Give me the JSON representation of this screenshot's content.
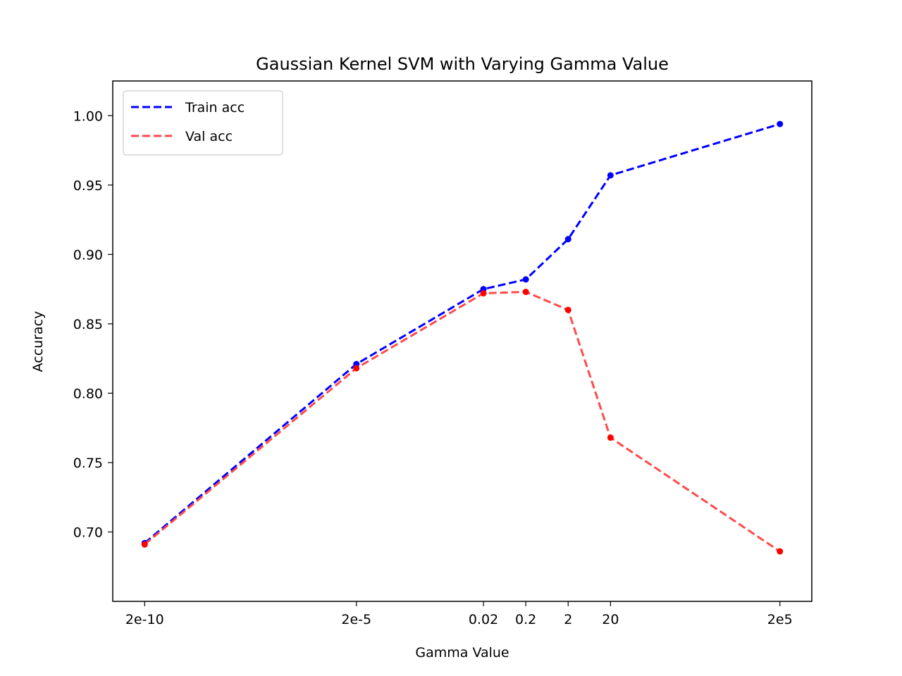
{
  "chart_data": {
    "type": "line",
    "title": "Gaussian Kernel SVM with Varying Gamma Value",
    "xlabel": "Gamma Value",
    "ylabel": "Accuracy",
    "x_scale": "log10",
    "x": [
      2e-10,
      2e-05,
      0.02,
      0.2,
      2,
      20,
      200000.0
    ],
    "x_tick_labels": [
      "2e-10",
      "2e-5",
      "0.02",
      "0.2",
      "2",
      "20",
      "2e5"
    ],
    "ylim": [
      0.65,
      1.025
    ],
    "y_ticks": [
      0.7,
      0.75,
      0.8,
      0.85,
      0.9,
      0.95,
      1.0
    ],
    "y_tick_labels": [
      "0.70",
      "0.75",
      "0.80",
      "0.85",
      "0.90",
      "0.95",
      "1.00"
    ],
    "grid": false,
    "legend_position": "top-left",
    "series": [
      {
        "name": "Train acc",
        "color": "#0000ff",
        "line_style": "dashed",
        "values": [
          0.692,
          0.821,
          0.875,
          0.882,
          0.911,
          0.957,
          0.994
        ]
      },
      {
        "name": "Val acc",
        "color": "#ff0000",
        "line_color": "#ff4a4a",
        "line_style": "dashed",
        "values": [
          0.691,
          0.818,
          0.872,
          0.873,
          0.86,
          0.768,
          0.686
        ]
      }
    ]
  }
}
